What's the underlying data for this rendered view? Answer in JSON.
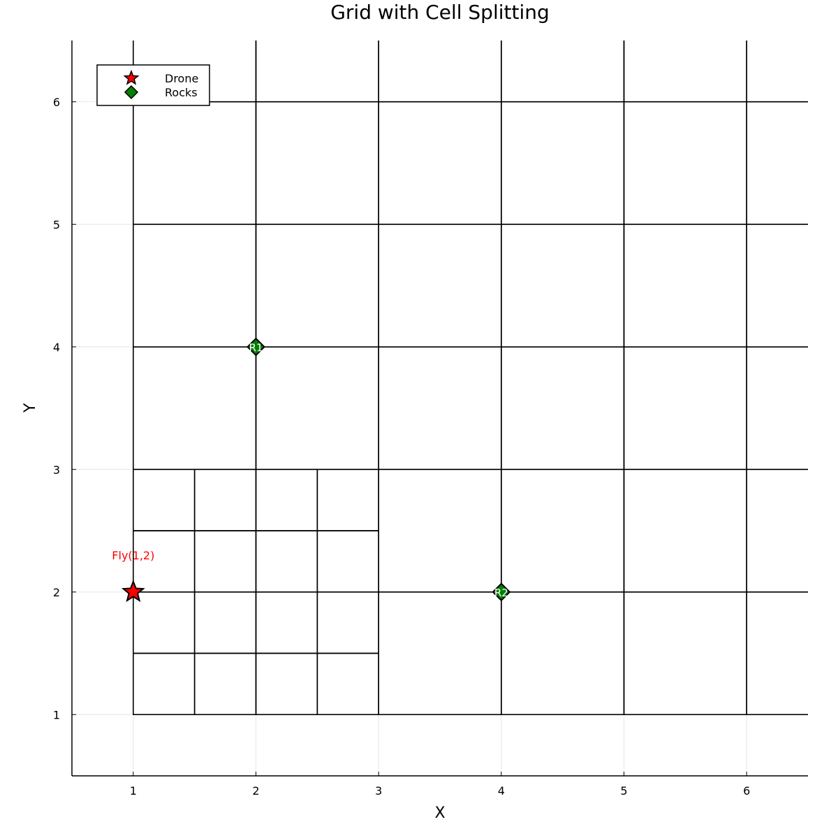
{
  "chart_data": {
    "type": "scatter",
    "title": "Grid with Cell Splitting",
    "xlabel": "X",
    "ylabel": "Y",
    "xlim": [
      0.5,
      6.5
    ],
    "ylim": [
      0.5,
      6.5
    ],
    "xticks": [
      1,
      2,
      3,
      4,
      5,
      6
    ],
    "yticks": [
      1,
      2,
      3,
      4,
      5,
      6
    ],
    "grid": true,
    "legend_position": "top-left",
    "series": [
      {
        "name": "Drone",
        "marker": "star",
        "color": "#ff0000",
        "points": [
          {
            "x": 1,
            "y": 2
          }
        ]
      },
      {
        "name": "Rocks",
        "marker": "diamond",
        "color": "#008000",
        "points": [
          {
            "x": 2,
            "y": 4,
            "label": "R1"
          },
          {
            "x": 4,
            "y": 2,
            "label": "R2"
          }
        ]
      }
    ],
    "annotations": [
      {
        "text": "Fly(1,2)",
        "x": 1,
        "y": 2.3,
        "color": "#ff0000"
      }
    ],
    "cells": [
      [
        1,
        1,
        1.5,
        1.5
      ],
      [
        1.5,
        1,
        2,
        1.5
      ],
      [
        2,
        1,
        2.5,
        1.5
      ],
      [
        2.5,
        1,
        3,
        1.5
      ],
      [
        1,
        1.5,
        1.5,
        2
      ],
      [
        1.5,
        1.5,
        2,
        2
      ],
      [
        2,
        1.5,
        2.5,
        2
      ],
      [
        2.5,
        1.5,
        3,
        2
      ],
      [
        1,
        2,
        1.5,
        2.5
      ],
      [
        1.5,
        2,
        2,
        2.5
      ],
      [
        2,
        2,
        2.5,
        2.5
      ],
      [
        2.5,
        2,
        3,
        2.5
      ],
      [
        1,
        2.5,
        1.5,
        3
      ],
      [
        1.5,
        2.5,
        2,
        3
      ],
      [
        2,
        2.5,
        2.5,
        3
      ],
      [
        2.5,
        2.5,
        3,
        3
      ],
      [
        3,
        1,
        4,
        2
      ],
      [
        4,
        1,
        5,
        2
      ],
      [
        5,
        1,
        6,
        2
      ],
      [
        6,
        1,
        7,
        2
      ],
      [
        3,
        2,
        4,
        3
      ],
      [
        4,
        2,
        5,
        3
      ],
      [
        5,
        2,
        6,
        3
      ],
      [
        6,
        2,
        7,
        3
      ],
      [
        1,
        3,
        2,
        4
      ],
      [
        2,
        3,
        3,
        4
      ],
      [
        3,
        3,
        4,
        4
      ],
      [
        4,
        3,
        5,
        4
      ],
      [
        5,
        3,
        6,
        4
      ],
      [
        6,
        3,
        7,
        4
      ],
      [
        1,
        4,
        2,
        5
      ],
      [
        2,
        4,
        3,
        5
      ],
      [
        3,
        4,
        4,
        5
      ],
      [
        4,
        4,
        5,
        5
      ],
      [
        5,
        4,
        6,
        5
      ],
      [
        6,
        4,
        7,
        5
      ],
      [
        1,
        5,
        2,
        6
      ],
      [
        2,
        5,
        3,
        6
      ],
      [
        3,
        5,
        4,
        6
      ],
      [
        4,
        5,
        5,
        6
      ],
      [
        5,
        5,
        6,
        6
      ],
      [
        6,
        5,
        7,
        6
      ],
      [
        1,
        6,
        2,
        7
      ],
      [
        2,
        6,
        3,
        7
      ],
      [
        3,
        6,
        4,
        7
      ],
      [
        4,
        6,
        5,
        7
      ],
      [
        5,
        6,
        6,
        7
      ],
      [
        6,
        6,
        7,
        7
      ]
    ]
  }
}
